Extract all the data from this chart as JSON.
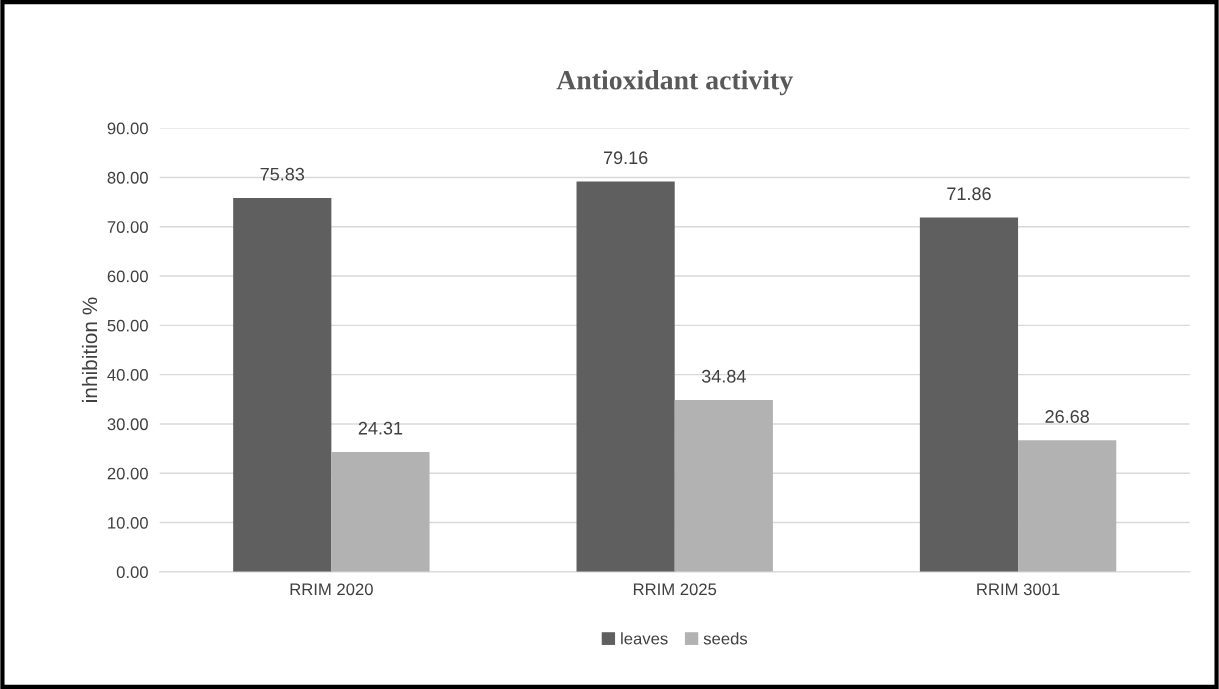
{
  "chart_data": {
    "type": "bar",
    "title": "Antioxidant activity",
    "ylabel": "inhibition %",
    "categories": [
      "RRIM 2020",
      "RRIM 2025",
      "RRIM 3001"
    ],
    "series": [
      {
        "name": "leaves",
        "color": "#5f5f5f",
        "values": [
          75.83,
          79.16,
          71.86
        ]
      },
      {
        "name": "seeds",
        "color": "#b2b2b2",
        "values": [
          24.31,
          34.84,
          26.68
        ]
      }
    ],
    "ylim": [
      0,
      90
    ],
    "yticks": [
      {
        "value": 0,
        "label": "0.00"
      },
      {
        "value": 10,
        "label": "10.00"
      },
      {
        "value": 20,
        "label": "20.00"
      },
      {
        "value": 30,
        "label": "30.00"
      },
      {
        "value": 40,
        "label": "40.00"
      },
      {
        "value": 50,
        "label": "50.00"
      },
      {
        "value": 60,
        "label": "60.00"
      },
      {
        "value": 70,
        "label": "70.00"
      },
      {
        "value": 80,
        "label": "80.00"
      },
      {
        "value": 90,
        "label": "90.00"
      }
    ],
    "grid": "y",
    "legend": "bottom",
    "data_labels": true
  }
}
